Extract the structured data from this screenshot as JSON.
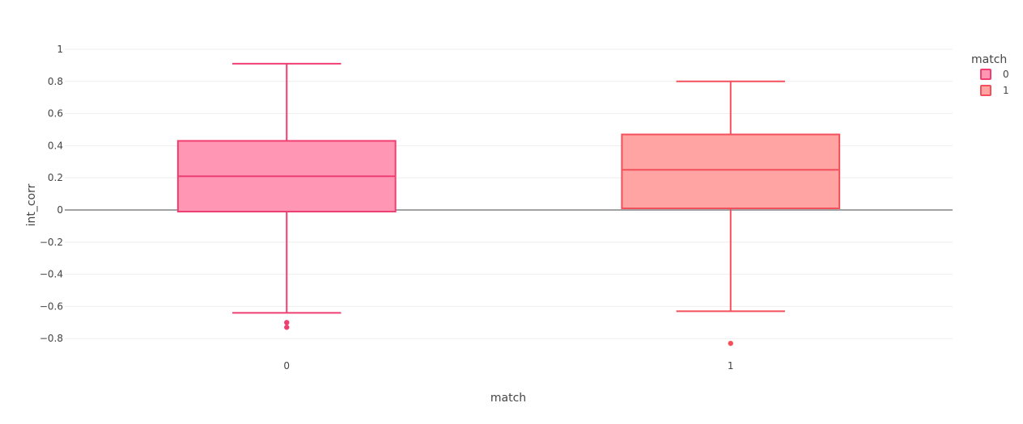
{
  "chart_data": {
    "type": "box",
    "xlabel": "match",
    "ylabel": "int_corr",
    "categories": [
      "0",
      "1"
    ],
    "ylim": [
      -0.9,
      1.05
    ],
    "y_ticks": [
      1,
      0.8,
      0.6,
      0.4,
      0.2,
      0,
      -0.2,
      -0.4,
      -0.6,
      -0.8
    ],
    "y_tick_labels": [
      "1",
      "0.8",
      "0.6",
      "0.4",
      "0.2",
      "0",
      "−0.2",
      "−0.4",
      "−0.6",
      "−0.8"
    ],
    "grid": true,
    "zero_line": true,
    "legend": {
      "title": "match",
      "placement": "top-right",
      "items": [
        "0",
        "1"
      ]
    },
    "series": [
      {
        "name": "0",
        "category": "0",
        "lower_whisker": -0.64,
        "q1": -0.01,
        "median": 0.21,
        "q3": 0.43,
        "upper_whisker": 0.91,
        "outliers": [
          -0.7,
          -0.73
        ],
        "line_color": "#ef3e72",
        "fill_color": "#ff97b4"
      },
      {
        "name": "1",
        "category": "1",
        "lower_whisker": -0.63,
        "q1": 0.01,
        "median": 0.25,
        "q3": 0.47,
        "upper_whisker": 0.8,
        "outliers": [
          -0.83
        ],
        "line_color": "#f4505c",
        "fill_color": "#ffa3a3"
      }
    ]
  }
}
